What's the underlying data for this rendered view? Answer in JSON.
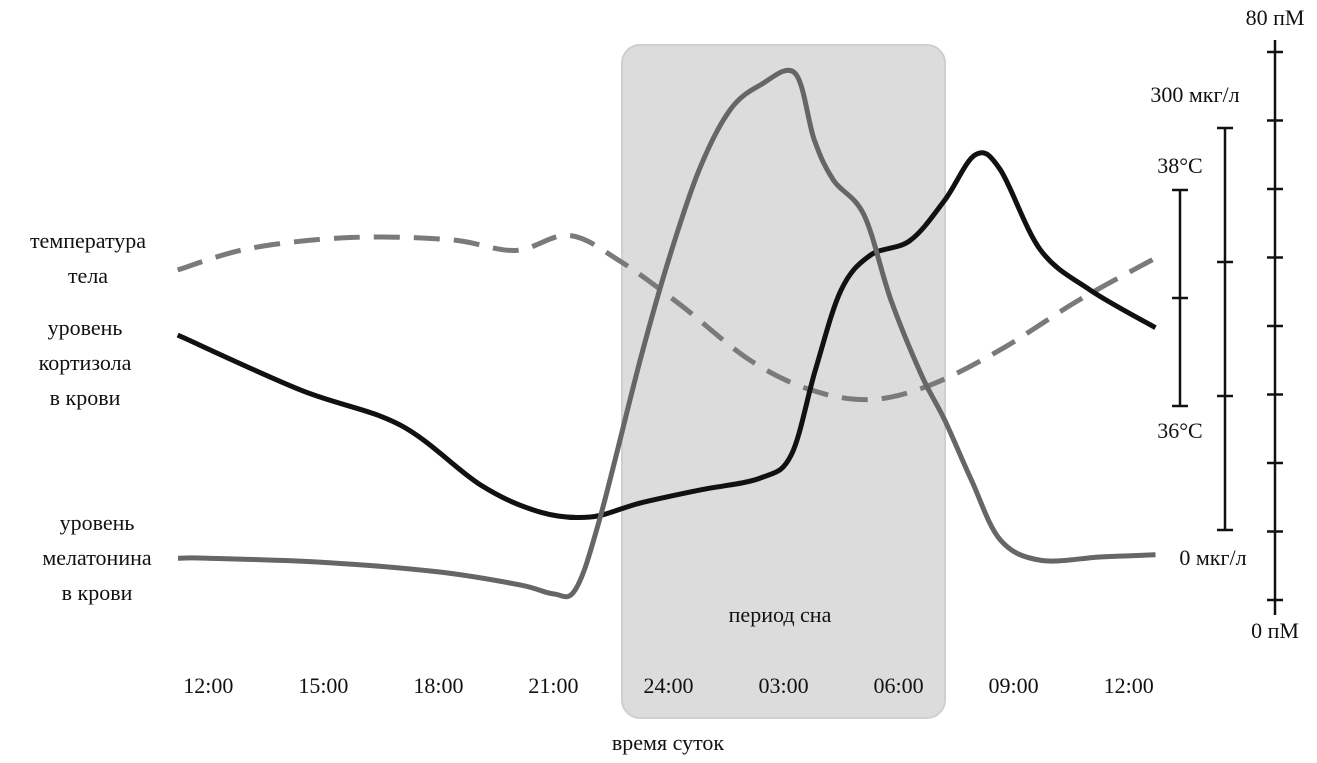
{
  "chart_data": {
    "type": "line",
    "x_label": "время суток",
    "sleep_label": "период сна",
    "xlim": [
      -1,
      25
    ],
    "xticks": [
      {
        "value": 0,
        "label": "12:00"
      },
      {
        "value": 3,
        "label": "15:00"
      },
      {
        "value": 6,
        "label": "18:00"
      },
      {
        "value": 9,
        "label": "21:00"
      },
      {
        "value": 12,
        "label": "24:00"
      },
      {
        "value": 15,
        "label": "03:00"
      },
      {
        "value": 18,
        "label": "06:00"
      },
      {
        "value": 21,
        "label": "09:00"
      },
      {
        "value": 24,
        "label": "12:00"
      }
    ],
    "ylim": [
      0,
      80
    ],
    "yticks": [
      {
        "value": 0,
        "label": "0 пМ"
      },
      {
        "value": 10,
        "label": null
      },
      {
        "value": 20,
        "label": null
      },
      {
        "value": 30,
        "label": null
      },
      {
        "value": 40,
        "label": null
      },
      {
        "value": 50,
        "label": null
      },
      {
        "value": 60,
        "label": null
      },
      {
        "value": 70,
        "label": null
      },
      {
        "value": 80,
        "label": "80 пМ"
      }
    ],
    "y2lim": [
      0,
      300
    ],
    "y2ticks": [
      {
        "value": 0,
        "label": "0 мкг/л"
      },
      {
        "value": 100,
        "label": null
      },
      {
        "value": 200,
        "label": null
      },
      {
        "value": 300,
        "label": "300 мкг/л"
      }
    ],
    "y3lim": [
      36,
      38
    ],
    "y3ticks": [
      {
        "value": 36,
        "label": "36°C"
      },
      {
        "value": 37,
        "label": null
      },
      {
        "value": 38,
        "label": "38°C"
      }
    ],
    "series": [
      {
        "name": [
          "температура",
          "тела"
        ],
        "color": "#7a7a7a",
        "dashed": true,
        "axis": "y3",
        "x": [
          -0.8,
          1.09,
          3.7,
          6.3,
          8.0,
          9.4,
          10.7,
          12.3,
          14.1,
          15.7,
          17.26,
          18.8,
          20.65,
          22.7,
          24.7
        ],
        "values": [
          37.26,
          37.46,
          37.56,
          37.54,
          37.44,
          37.58,
          37.35,
          36.94,
          36.43,
          36.15,
          36.06,
          36.19,
          36.52,
          36.98,
          37.37
        ]
      },
      {
        "name": [
          "уровень",
          "кортизола",
          "в крови"
        ],
        "color": "#111111",
        "dashed": false,
        "axis": "y2",
        "x": [
          -0.8,
          2.4,
          5.0,
          7.1,
          8.65,
          9.96,
          11.26,
          12.83,
          14.4,
          15.2,
          15.83,
          16.5,
          17.26,
          18.3,
          19.2,
          20.0,
          20.65,
          21.7,
          23.0,
          24.7
        ],
        "values": [
          145.5,
          104.5,
          78.4,
          33.6,
          13.4,
          9.7,
          20.1,
          29.9,
          38.8,
          56,
          119.4,
          179,
          205,
          216,
          246,
          280,
          269,
          209,
          179,
          151
        ]
      },
      {
        "name": [
          "уровень",
          "мелатонина",
          "в крови"
        ],
        "color": "#666666",
        "dashed": false,
        "axis": "y",
        "x": [
          -0.79,
          0,
          3,
          6,
          8.13,
          9,
          9.57,
          10.2,
          11.26,
          12,
          12.8,
          13.6,
          14.4,
          15.3,
          15.8,
          16.3,
          17.1,
          17.8,
          18.6,
          19.2,
          19.9,
          20.65,
          21.7,
          23.3,
          24.7
        ],
        "values": [
          6.1,
          6.1,
          5.5,
          4.1,
          2.2,
          0.9,
          1.5,
          11.7,
          35,
          49.6,
          62.8,
          71.5,
          75.2,
          76.9,
          67.2,
          61.3,
          56.2,
          43.8,
          32.8,
          26.3,
          17.5,
          8.8,
          5.8,
          6.3,
          6.6
        ]
      }
    ]
  }
}
